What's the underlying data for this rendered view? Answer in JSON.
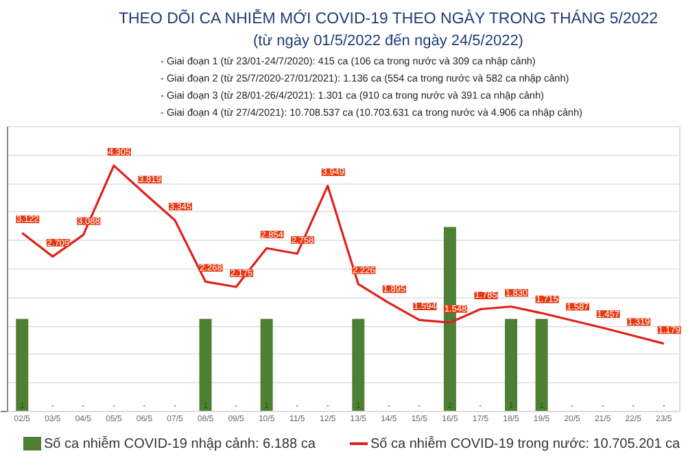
{
  "chart_data": {
    "type": "bar",
    "title": "THEO DÕI CA NHIỄM MỚI COVID-19 THEO NGÀY TRONG THÁNG 5/2022",
    "subtitle": "(từ ngày 01/5/2022 đến ngày 24/5/2022)",
    "annotations": [
      "- Giai đoạn 1 (từ 23/01-24/7/2020): 415 ca (106 ca trong nước và 309 ca nhập cảnh)",
      "- Giai đoạn 2 (từ 25/7/2020-27/01/2021): 1.136 ca (554 ca trong nước và 582 ca nhập cảnh)",
      "- Giai đoạn 3 (từ 28/01-26/4/2021): 1.301 ca (910 ca trong nước và 391 ca nhập cảnh)",
      "- Giai đoạn 4 (từ 27/4/2021): 10.708.537 ca (10.703.631 ca trong nước và 4.906 ca nhập cảnh)"
    ],
    "categories": [
      "02/5",
      "03/5",
      "04/5",
      "05/5",
      "06/5",
      "07/5",
      "08/5",
      "09/5",
      "10/5",
      "11/5",
      "12/5",
      "13/5",
      "14/5",
      "15/5",
      "16/5",
      "17/5",
      "18/5",
      "19/5",
      "20/5",
      "21/5",
      "22/5",
      "23/5"
    ],
    "series": [
      {
        "name": "Số ca nhiễm COVID-19 nhập cảnh: 6.188 ca",
        "axis": "y2",
        "color": "#4e7f34",
        "values": [
          1,
          0,
          0,
          0,
          0,
          0,
          1,
          0,
          1,
          0,
          0,
          1,
          0,
          0,
          2,
          0,
          1,
          1,
          0,
          0,
          0,
          0
        ],
        "value_labels": [
          "1",
          "-",
          "-",
          "-",
          "-",
          "-",
          "1",
          "-",
          "1",
          "-",
          "-",
          "1",
          "-",
          "-",
          "2",
          "-",
          "1",
          "1",
          "-",
          "-",
          "-",
          "-"
        ]
      },
      {
        "name": "Số ca nhiễm COVID-19 trong nước: 10.705.201 ca",
        "type": "line",
        "color": "#e0201a",
        "values": [
          3122,
          2709,
          3088,
          4305,
          3819,
          3345,
          2268,
          2175,
          2854,
          2758,
          3949,
          2226,
          1895,
          1594,
          1548,
          1785,
          1830,
          1715,
          1587,
          1457,
          1319,
          1179
        ],
        "value_labels": [
          "3.122",
          "2.709",
          "3.088",
          "4.305",
          "3.819",
          "3.345",
          "2.268",
          "2.175",
          "2.854",
          "2.758",
          "3.949",
          "2.226",
          "1.895",
          "1.594",
          "1.548",
          "1.785",
          "1.830",
          "1.715",
          "1.587",
          "1.457",
          "1.319",
          "1.179"
        ]
      }
    ],
    "ylim": [
      0,
      5000
    ],
    "yticks": [
      0,
      500,
      1000,
      1500,
      2000,
      2500,
      3000,
      3500,
      4000,
      4500,
      5000
    ],
    "y2lim": [
      0,
      3.1
    ],
    "tick_labels": "x",
    "grid": "y",
    "legend": "bottom",
    "marker": "none",
    "line_style": "solid"
  }
}
